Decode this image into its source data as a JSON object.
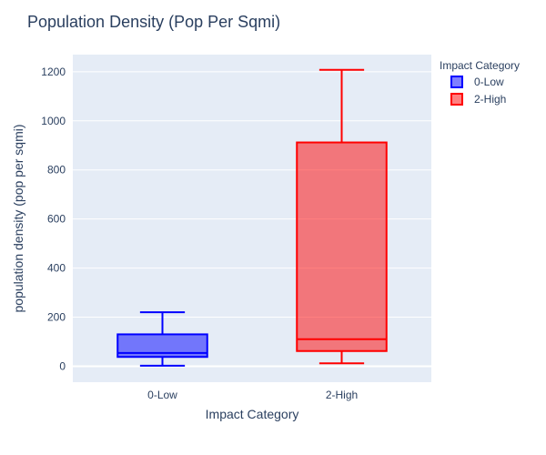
{
  "chart_data": {
    "type": "box",
    "title": "Population Density (Pop Per Sqmi)",
    "xlabel": "Impact Category",
    "ylabel": "population density (pop per sqmi)",
    "categories": [
      "0-Low",
      "2-High"
    ],
    "ylim": [
      -65,
      1270
    ],
    "yticks": [
      0,
      200,
      400,
      600,
      800,
      1000,
      1200
    ],
    "grid": true,
    "legend": {
      "title": "Impact Category",
      "placement": "top-right",
      "entries": [
        "0-Low",
        "2-High"
      ]
    },
    "series": [
      {
        "name": "0-Low",
        "category": "0-Low",
        "min": 2,
        "q1": 38,
        "median": 54,
        "q3": 130,
        "max": 220,
        "line_color": "#0000ff",
        "fill_color": "rgba(0,0,255,0.5)"
      },
      {
        "name": "2-High",
        "category": "2-High",
        "min": 12,
        "q1": 62,
        "median": 110,
        "q3": 912,
        "max": 1208,
        "line_color": "#ff0000",
        "fill_color": "rgba(255,0,0,0.5)"
      }
    ]
  },
  "colors": {
    "plot_bg": "#e5ecf6",
    "grid": "#ffffff",
    "text": "#2a3f5f"
  }
}
